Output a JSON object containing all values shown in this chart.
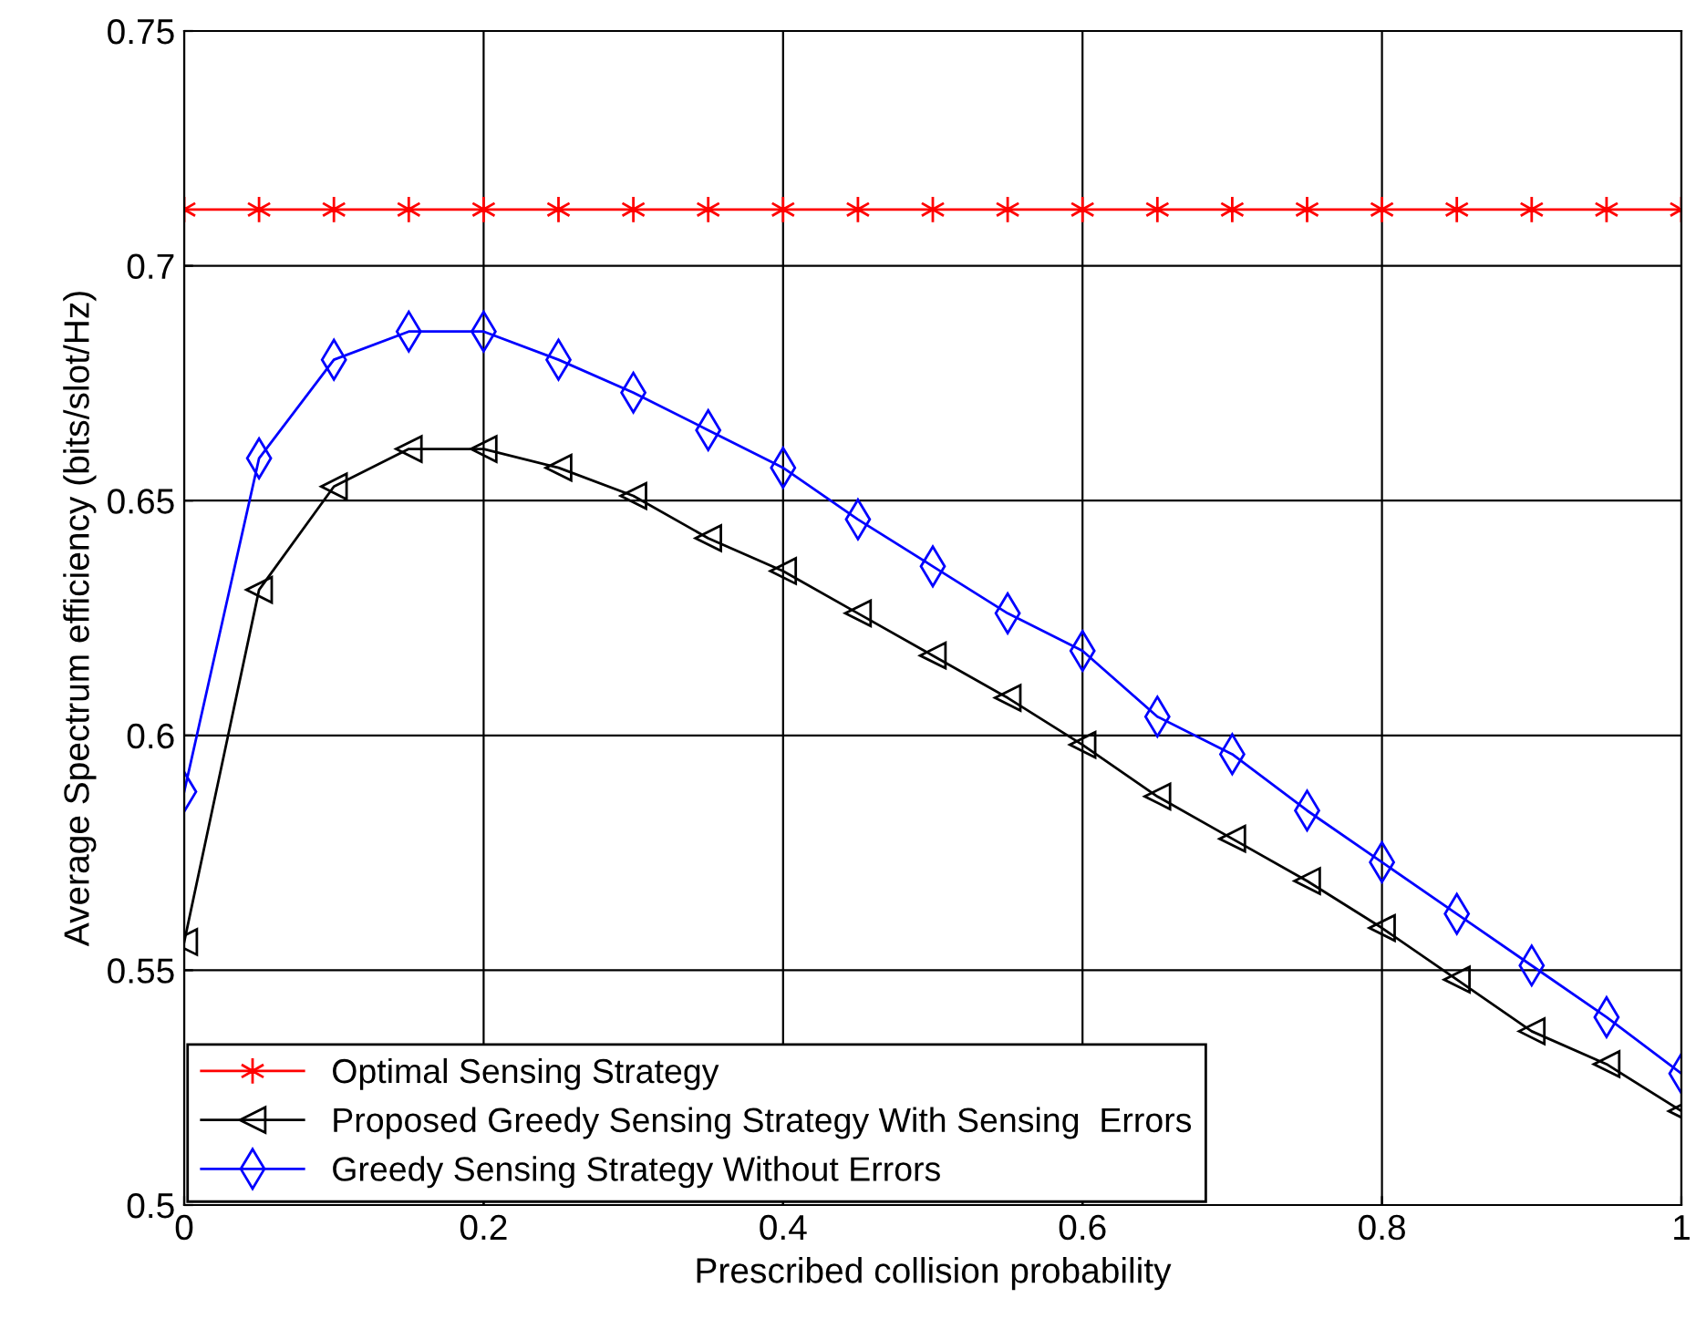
{
  "chart_data": {
    "type": "line",
    "xlabel": "Prescribed collision probability",
    "ylabel": "Average Spectrum efficiency (bits/slot/Hz)",
    "x": [
      0,
      0.05,
      0.1,
      0.15,
      0.2,
      0.25,
      0.3,
      0.35,
      0.4,
      0.45,
      0.5,
      0.55,
      0.6,
      0.65,
      0.7,
      0.75,
      0.8,
      0.85,
      0.9,
      0.95,
      1.0
    ],
    "series": [
      {
        "name": "Optimal Sensing Strategy",
        "color": "#ff0000",
        "marker": "cross",
        "values": [
          0.712,
          0.712,
          0.712,
          0.712,
          0.712,
          0.712,
          0.712,
          0.712,
          0.712,
          0.712,
          0.712,
          0.712,
          0.712,
          0.712,
          0.712,
          0.712,
          0.712,
          0.712,
          0.712,
          0.712,
          0.712
        ]
      },
      {
        "name": "Proposed Greedy Sensing Strategy With Sensing  Errors",
        "color": "#000000",
        "marker": "triangle",
        "values": [
          0.556,
          0.631,
          0.653,
          0.661,
          0.661,
          0.657,
          0.651,
          0.642,
          0.635,
          0.626,
          0.617,
          0.608,
          0.598,
          0.587,
          0.578,
          0.569,
          0.559,
          0.548,
          0.537,
          0.53,
          0.52
        ]
      },
      {
        "name": "Greedy Sensing Strategy Without Errors",
        "color": "#0000ff",
        "marker": "diamond",
        "values": [
          0.588,
          0.659,
          0.68,
          0.686,
          0.686,
          0.68,
          0.673,
          0.665,
          0.657,
          0.646,
          0.636,
          0.626,
          0.618,
          0.604,
          0.596,
          0.584,
          0.573,
          0.562,
          0.551,
          0.54,
          0.528
        ]
      }
    ],
    "xlim": [
      0,
      1
    ],
    "xticks": [
      0,
      0.2,
      0.4,
      0.6,
      0.8,
      1
    ],
    "ylim": [
      0.5,
      0.75
    ],
    "yticks": [
      0.5,
      0.55,
      0.6,
      0.65,
      0.7,
      0.75
    ],
    "grid": true,
    "legend": "bottom left",
    "line_style": "solid"
  }
}
